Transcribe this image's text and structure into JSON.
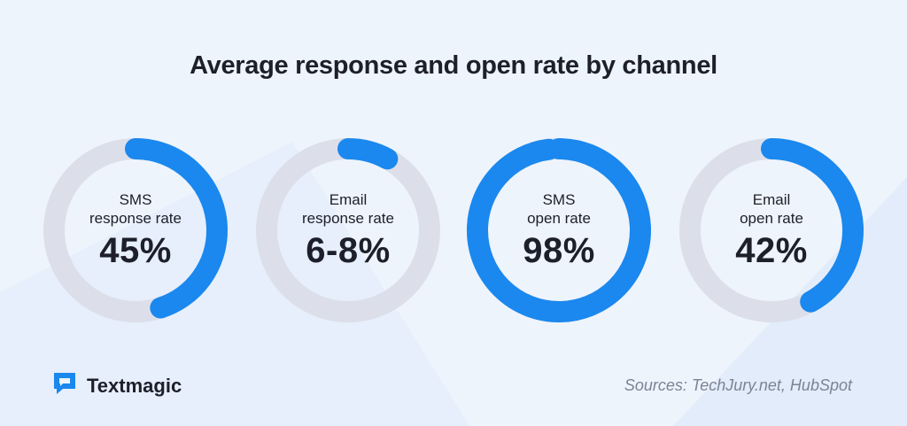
{
  "colors": {
    "accent": "#1a88ee",
    "track": "#dcdfea",
    "background": "#eef4fc",
    "text": "#1d1f2b",
    "muted": "#7b8494"
  },
  "chart_data": {
    "type": "donut",
    "title": "Average response and open rate by channel",
    "items": [
      {
        "line1": "SMS",
        "line2": "response rate",
        "label": "45%",
        "value": 45
      },
      {
        "line1": "Email",
        "line2": "response rate",
        "label": "6-8%",
        "value": 8
      },
      {
        "line1": "SMS",
        "line2": "open rate",
        "label": "98%",
        "value": 98
      },
      {
        "line1": "Email",
        "line2": "open rate",
        "label": "42%",
        "value": 42
      }
    ]
  },
  "brand": {
    "name": "Textmagic",
    "icon": "chat-bubble-icon"
  },
  "sources": "Sources: TechJury.net, HubSpot"
}
